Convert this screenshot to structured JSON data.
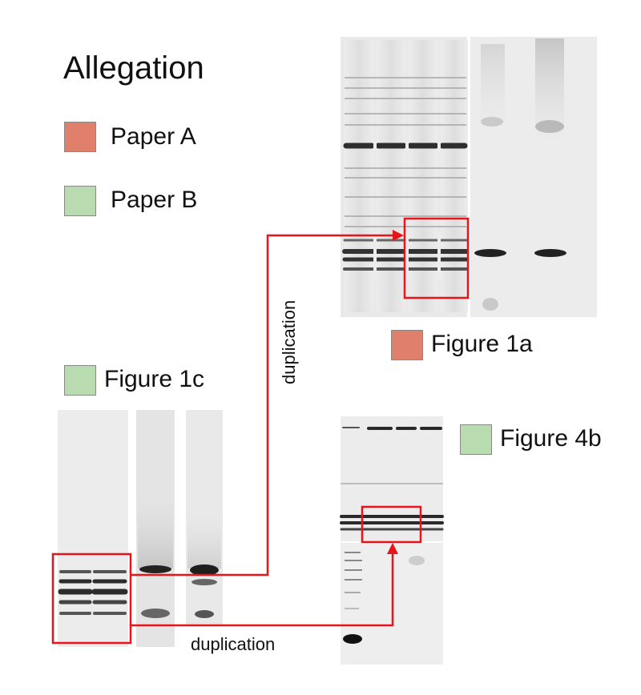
{
  "title": "Allegation",
  "colors": {
    "paper_a": "#e07f6c",
    "paper_b": "#b8dbb0",
    "highlight": "#e8141b"
  },
  "legend": [
    {
      "label": "Paper A",
      "color_key": "paper_a"
    },
    {
      "label": "Paper B",
      "color_key": "paper_b"
    }
  ],
  "figures": {
    "fig_1a": {
      "label": "Figure 1a",
      "color_key": "paper_a"
    },
    "fig_1c": {
      "label": "Figure 1c",
      "color_key": "paper_b"
    },
    "fig_4b": {
      "label": "Figure 4b",
      "color_key": "paper_b"
    }
  },
  "annotations": {
    "duplication_vertical": "duplication",
    "duplication_horizontal": "duplication"
  }
}
